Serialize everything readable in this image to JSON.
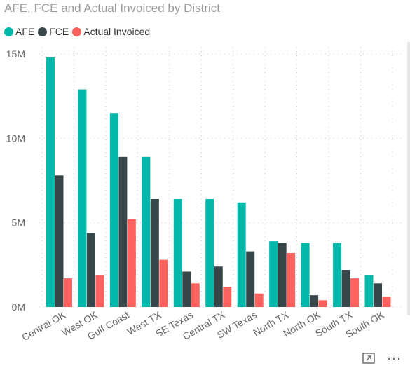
{
  "chart_data": {
    "type": "bar",
    "title": "AFE, FCE and Actual Invoiced by District",
    "xlabel": "",
    "ylabel": "",
    "categories": [
      "Central OK",
      "West OK",
      "Gulf Coast",
      "West TX",
      "SE Texas",
      "Central TX",
      "SW Texas",
      "North TX",
      "North OK",
      "South TX",
      "South OK"
    ],
    "series": [
      {
        "name": "AFE",
        "color": "#01B8AA",
        "values": [
          14.8,
          12.9,
          11.5,
          8.9,
          6.4,
          6.4,
          6.2,
          3.9,
          3.8,
          3.8,
          1.9
        ]
      },
      {
        "name": "FCE",
        "color": "#374649",
        "values": [
          7.8,
          4.4,
          8.9,
          6.4,
          2.1,
          2.4,
          3.3,
          3.8,
          0.7,
          2.2,
          1.4
        ]
      },
      {
        "name": "Actual Invoiced",
        "color": "#FD625E",
        "values": [
          1.7,
          1.9,
          5.2,
          2.8,
          1.4,
          1.2,
          0.8,
          3.2,
          0.4,
          1.7,
          0.6
        ]
      }
    ],
    "ylim": [
      0,
      15
    ],
    "yticks": [
      0,
      5,
      10,
      15
    ],
    "ytick_labels": [
      "0M",
      "5M",
      "10M",
      "15M"
    ],
    "grid": true,
    "legend_position": "top-left"
  },
  "icons": {
    "focus": "focus-mode-icon",
    "more": "more-options-icon"
  },
  "more_glyph": "···"
}
